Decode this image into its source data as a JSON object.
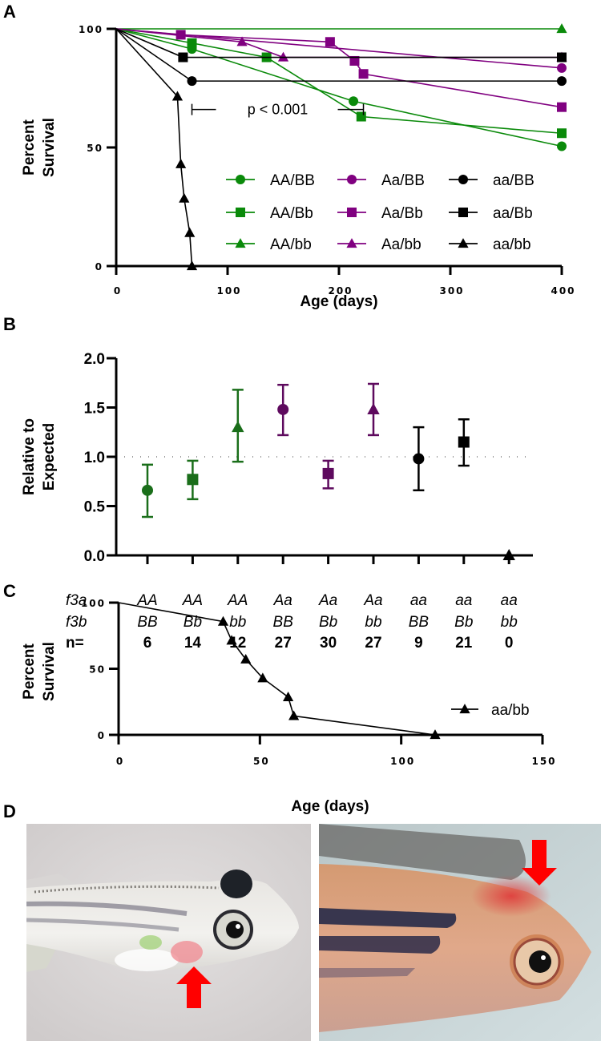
{
  "figure": {
    "panel_labels": [
      "A",
      "B",
      "C",
      "D"
    ]
  },
  "chart_data": [
    {
      "panel": "A",
      "type": "line",
      "title": "",
      "xlabel": "Age (days)",
      "ylabel": [
        "Percent",
        "Survival"
      ],
      "xlim": [
        0,
        400
      ],
      "ylim": [
        0,
        100
      ],
      "xticks": [
        "0",
        "100",
        "200",
        "300",
        "400"
      ],
      "xtick_values": [
        0,
        100,
        200,
        300,
        400
      ],
      "yticks": [
        "0",
        "50",
        "100"
      ],
      "ytick_values": [
        0,
        50,
        100
      ],
      "grid": false,
      "legend_position": "bottom-right",
      "annotation": {
        "text": "p < 0.001",
        "x_range": [
          68,
          186
        ],
        "y": 66
      },
      "colors": {
        "green": "#0a8a0a",
        "purple": "#800080",
        "black": "#000000"
      },
      "series": [
        {
          "name": "AA/BB",
          "color": "#0a8a0a",
          "marker": "circle",
          "x": [
            0,
            68,
            213,
            400
          ],
          "y": [
            100,
            91.5,
            69.5,
            50.5
          ]
        },
        {
          "name": "AA/Bb",
          "color": "#0a8a0a",
          "marker": "square",
          "x": [
            0,
            68,
            135,
            220,
            400
          ],
          "y": [
            100,
            94,
            88,
            63,
            56
          ]
        },
        {
          "name": "AA/bb",
          "color": "#0a8a0a",
          "marker": "triangle",
          "x": [
            0,
            400
          ],
          "y": [
            100,
            100
          ]
        },
        {
          "name": "Aa/BB",
          "color": "#800080",
          "marker": "circle",
          "x": [
            0,
            400
          ],
          "y": [
            100,
            83.5
          ]
        },
        {
          "name": "Aa/Bb",
          "color": "#800080",
          "marker": "square",
          "x": [
            0,
            58,
            192,
            214,
            222,
            400
          ],
          "y": [
            100,
            97.5,
            94.5,
            86.5,
            81,
            67
          ]
        },
        {
          "name": "Aa/bb",
          "color": "#800080",
          "marker": "triangle",
          "x": [
            0,
            113,
            150,
            400
          ],
          "y": [
            100,
            94.5,
            88,
            88
          ]
        },
        {
          "name": "aa/BB",
          "color": "#000000",
          "marker": "circle",
          "x": [
            0,
            68,
            400
          ],
          "y": [
            100,
            78,
            78
          ]
        },
        {
          "name": "aa/Bb",
          "color": "#000000",
          "marker": "square",
          "x": [
            0,
            60,
            400
          ],
          "y": [
            100,
            88,
            88
          ]
        },
        {
          "name": "aa/bb",
          "color": "#000000",
          "marker": "triangle",
          "x": [
            0,
            55,
            58,
            61,
            66,
            68
          ],
          "y": [
            100,
            71.5,
            43,
            28.5,
            14,
            0
          ]
        }
      ]
    },
    {
      "panel": "B",
      "type": "scatter",
      "title": "",
      "xlabel": "",
      "ylabel": [
        "Relative to",
        "Expected"
      ],
      "ylim": [
        0,
        2.0
      ],
      "yticks": [
        "0.0",
        "0.5",
        "1.0",
        "1.5",
        "2.0"
      ],
      "ytick_values": [
        0,
        0.5,
        1.0,
        1.5,
        2.0
      ],
      "reference_line": 1.0,
      "grid": false,
      "row_labels": [
        "f3a",
        "f3b",
        "n="
      ],
      "categories": [
        {
          "f3a": "AA",
          "f3b": "BB",
          "n": "6",
          "marker": "circle",
          "color": "#1a6e1a",
          "value": 0.66,
          "err_low": 0.39,
          "err_high": 0.92
        },
        {
          "f3a": "AA",
          "f3b": "Bb",
          "n": "14",
          "marker": "square",
          "color": "#1a6e1a",
          "value": 0.77,
          "err_low": 0.57,
          "err_high": 0.96
        },
        {
          "f3a": "AA",
          "f3b": "bb",
          "n": "12",
          "marker": "triangle",
          "color": "#1a6e1a",
          "value": 1.3,
          "err_low": 0.95,
          "err_high": 1.68
        },
        {
          "f3a": "Aa",
          "f3b": "BB",
          "n": "27",
          "marker": "circle",
          "color": "#5e0a5e",
          "value": 1.48,
          "err_low": 1.22,
          "err_high": 1.73
        },
        {
          "f3a": "Aa",
          "f3b": "Bb",
          "n": "30",
          "marker": "square",
          "color": "#5e0a5e",
          "value": 0.83,
          "err_low": 0.68,
          "err_high": 0.96
        },
        {
          "f3a": "Aa",
          "f3b": "bb",
          "n": "27",
          "marker": "triangle",
          "color": "#5e0a5e",
          "value": 1.48,
          "err_low": 1.22,
          "err_high": 1.74
        },
        {
          "f3a": "aa",
          "f3b": "BB",
          "n": "9",
          "marker": "circle",
          "color": "#000000",
          "value": 0.98,
          "err_low": 0.66,
          "err_high": 1.3
        },
        {
          "f3a": "aa",
          "f3b": "Bb",
          "n": "21",
          "marker": "square",
          "color": "#000000",
          "value": 1.15,
          "err_low": 0.91,
          "err_high": 1.38
        },
        {
          "f3a": "aa",
          "f3b": "bb",
          "n": "0",
          "marker": "triangle",
          "color": "#000000",
          "value": 0.0,
          "err_low": 0.0,
          "err_high": 0.0
        }
      ]
    },
    {
      "panel": "C",
      "type": "line",
      "title": "",
      "xlabel": "Age (days)",
      "ylabel": [
        "Percent",
        "Survival"
      ],
      "xlim": [
        0,
        150
      ],
      "ylim": [
        0,
        100
      ],
      "xticks": [
        "0",
        "50",
        "100",
        "150"
      ],
      "xtick_values": [
        0,
        50,
        100,
        150
      ],
      "yticks": [
        "0",
        "50",
        "100"
      ],
      "ytick_values": [
        0,
        50,
        100
      ],
      "grid": false,
      "legend_position": "right",
      "series": [
        {
          "name": "aa/bb",
          "color": "#000000",
          "marker": "triangle",
          "x": [
            0,
            37,
            40,
            45,
            51,
            60,
            62,
            112
          ],
          "y": [
            100,
            85.7,
            71.4,
            57.1,
            42.9,
            28.6,
            14.3,
            0
          ]
        }
      ]
    }
  ],
  "photos": [
    {
      "name": "juvenile-fish-photo",
      "subject": "juvenile zebrafish with ventral red hemorrhage",
      "arrow_direction": "up",
      "background": "#d9d6d6"
    },
    {
      "name": "adult-fish-photo",
      "subject": "adult zebrafish head with red hemorrhage above eye",
      "arrow_direction": "down",
      "background": "#c8d6d8"
    }
  ],
  "arrow_color": "#ff0000"
}
